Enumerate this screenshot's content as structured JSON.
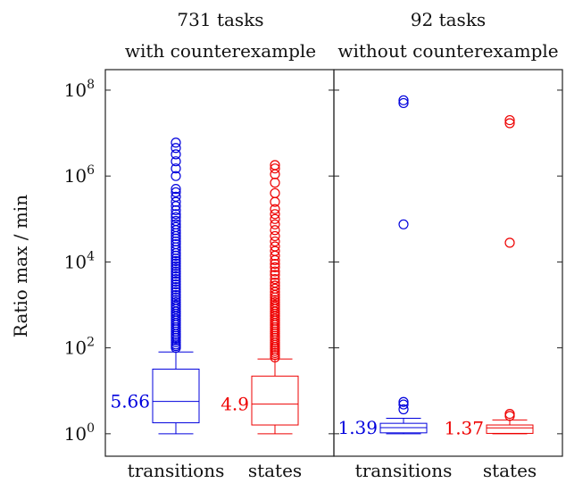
{
  "chart_data": {
    "type": "boxplot",
    "ylabel": "Ratio max / min",
    "yscale": "log",
    "ylim": [
      0.3,
      300000000
    ],
    "yticks": [
      {
        "value": 1,
        "base": "10",
        "exp": "0"
      },
      {
        "value": 100,
        "base": "10",
        "exp": "2"
      },
      {
        "value": 10000,
        "base": "10",
        "exp": "4"
      },
      {
        "value": 1000000,
        "base": "10",
        "exp": "6"
      },
      {
        "value": 100000000,
        "base": "10",
        "exp": "8"
      }
    ],
    "colors": {
      "transitions": "#0000dd",
      "states": "#ee0000"
    },
    "panels": [
      {
        "title_line1": "731 tasks",
        "title_line2": "with counterexample",
        "boxes": [
          {
            "category": "transitions",
            "color": "#0000dd",
            "whisker_low": 1,
            "q1": 1.8,
            "median": 5.66,
            "q3": 32,
            "whisker_high": 80,
            "median_label": "5.66",
            "outliers": [
              100,
              110,
              120,
              135,
              150,
              170,
              190,
              210,
              240,
              270,
              300,
              340,
              380,
              430,
              480,
              550,
              620,
              700,
              800,
              900,
              1000,
              1150,
              1300,
              1500,
              1700,
              2000,
              2300,
              2600,
              3000,
              3500,
              4000,
              4600,
              5300,
              6000,
              7000,
              8000,
              9200,
              10500,
              12000,
              14000,
              16000,
              19000,
              22000,
              26000,
              30000,
              35000,
              40000,
              47000,
              55000,
              65000,
              75000,
              90000,
              110000,
              130000,
              160000,
              200000,
              250000,
              330000,
              420000,
              500000,
              1000000,
              1500000,
              2200000,
              3200000,
              4500000,
              6000000
            ]
          },
          {
            "category": "states",
            "color": "#ee0000",
            "whisker_low": 1,
            "q1": 1.6,
            "median": 4.9,
            "q3": 22,
            "whisker_high": 55,
            "median_label": "4.9",
            "outliers": [
              60,
              68,
              76,
              85,
              95,
              105,
              118,
              132,
              150,
              170,
              190,
              215,
              240,
              270,
              300,
              340,
              380,
              430,
              480,
              550,
              620,
              700,
              800,
              900,
              1000,
              1150,
              1300,
              1500,
              1700,
              2000,
              2400,
              2800,
              3300,
              4000,
              5000,
              6000,
              7500,
              9000,
              11000,
              14000,
              18000,
              23000,
              30000,
              40000,
              55000,
              75000,
              100000,
              130000,
              170000,
              250000,
              400000,
              700000,
              1100000,
              1500000,
              1800000
            ]
          }
        ]
      },
      {
        "title_line1": "92 tasks",
        "title_line2": "without counterexample",
        "boxes": [
          {
            "category": "transitions",
            "color": "#0000dd",
            "whisker_low": 1,
            "q1": 1.05,
            "median": 1.39,
            "q3": 1.75,
            "whisker_high": 2.3,
            "median_label": "1.39",
            "outliers": [
              3.7,
              4.8,
              5.5,
              75000,
              50000000,
              58000000
            ]
          },
          {
            "category": "states",
            "color": "#ee0000",
            "whisker_low": 1,
            "q1": 1.02,
            "median": 1.37,
            "q3": 1.6,
            "whisker_high": 2.1,
            "median_label": "1.37",
            "outliers": [
              2.6,
              2.9,
              28000,
              17000000,
              20000000
            ]
          }
        ]
      }
    ]
  }
}
